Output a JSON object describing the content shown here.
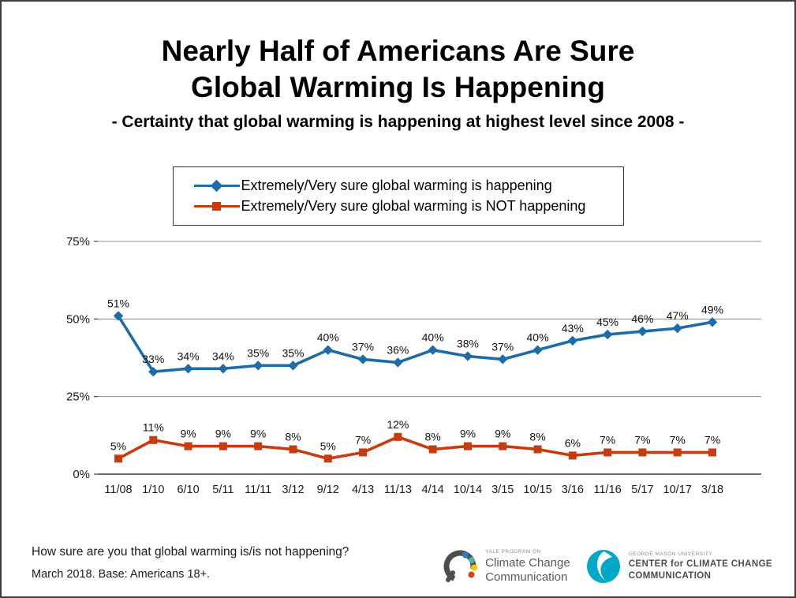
{
  "header": {
    "line1": "Nearly Half of Americans Are Sure",
    "line2": "Global Warming Is Happening",
    "subtitle": "- Certainty that global warming is happening at highest level since 2008 -"
  },
  "chart_data": {
    "type": "line",
    "title": "Nearly Half of Americans Are Sure Global Warming Is Happening",
    "subtitle": "- Certainty that global warming is happening at highest level since 2008 -",
    "categories": [
      "11/08",
      "1/10",
      "6/10",
      "5/11",
      "11/11",
      "3/12",
      "9/12",
      "4/13",
      "11/13",
      "4/14",
      "10/14",
      "3/15",
      "10/15",
      "3/16",
      "11/16",
      "5/17",
      "10/17",
      "3/18"
    ],
    "series": [
      {
        "name": "Extremely/Very sure global warming is happening",
        "color": "#1b6ca8",
        "marker": "diamond",
        "values": [
          51,
          33,
          34,
          34,
          35,
          35,
          40,
          37,
          36,
          40,
          38,
          37,
          40,
          43,
          45,
          46,
          47,
          49
        ]
      },
      {
        "name": "Extremely/Very sure global warming is NOT happening",
        "color": "#c83b0e",
        "marker": "square",
        "values": [
          5,
          11,
          9,
          9,
          9,
          8,
          5,
          7,
          12,
          8,
          9,
          9,
          8,
          6,
          7,
          7,
          7,
          7
        ]
      }
    ],
    "xlabel": "",
    "ylabel": "",
    "ylim": [
      0,
      75
    ],
    "yticks": [
      0,
      25,
      50,
      75
    ],
    "ytick_labels": [
      "0%",
      "25%",
      "50%",
      "75%"
    ],
    "data_label_suffix": "%",
    "grid": true,
    "legend_position": "top"
  },
  "footer": {
    "question": "How sure are you that global warming is/is not happening?",
    "base": "March 2018. Base: Americans 18+."
  },
  "logos": {
    "yale": {
      "program": "YALE PROGRAM ON",
      "line1": "Climate Change",
      "line2": "Communication"
    },
    "gmu": {
      "university": "GEORGE MASON UNIVERSITY",
      "line1": "CENTER for CLIMATE CHANGE",
      "line2": "COMMUNICATION"
    }
  },
  "colors": {
    "series_happening": "#1b6ca8",
    "series_not_happening": "#c83b0e",
    "gridline": "#8c8c8c",
    "axis": "#3f3f3f",
    "gmu_teal": "#00a7c7"
  }
}
